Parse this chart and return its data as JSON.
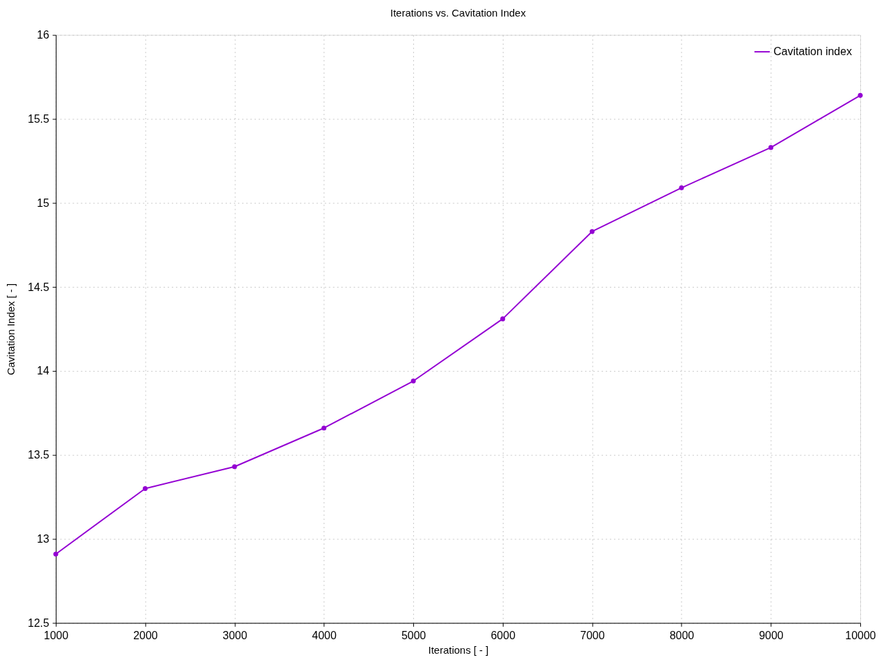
{
  "chart_data": {
    "type": "line",
    "title": "Iterations  vs. Cavitation Index",
    "xlabel": "Iterations [ - ]",
    "ylabel": "Cavitation Index [ - ]",
    "x": [
      1000,
      2000,
      3000,
      4000,
      5000,
      6000,
      7000,
      8000,
      9000,
      10000
    ],
    "series": [
      {
        "name": "Cavitation index",
        "color": "#9400d3",
        "values": [
          12.91,
          13.3,
          13.43,
          13.66,
          13.94,
          14.31,
          14.83,
          15.09,
          15.33,
          15.64
        ]
      }
    ],
    "xlim": [
      1000,
      10000
    ],
    "xticks": [
      1000,
      2000,
      3000,
      4000,
      5000,
      6000,
      7000,
      8000,
      9000,
      10000
    ],
    "ylim": [
      12.5,
      16
    ],
    "yticks": [
      12.5,
      13,
      13.5,
      14,
      14.5,
      15,
      15.5,
      16
    ],
    "grid": true,
    "legend": "top right",
    "marker": "circle",
    "line_style": "solid"
  }
}
